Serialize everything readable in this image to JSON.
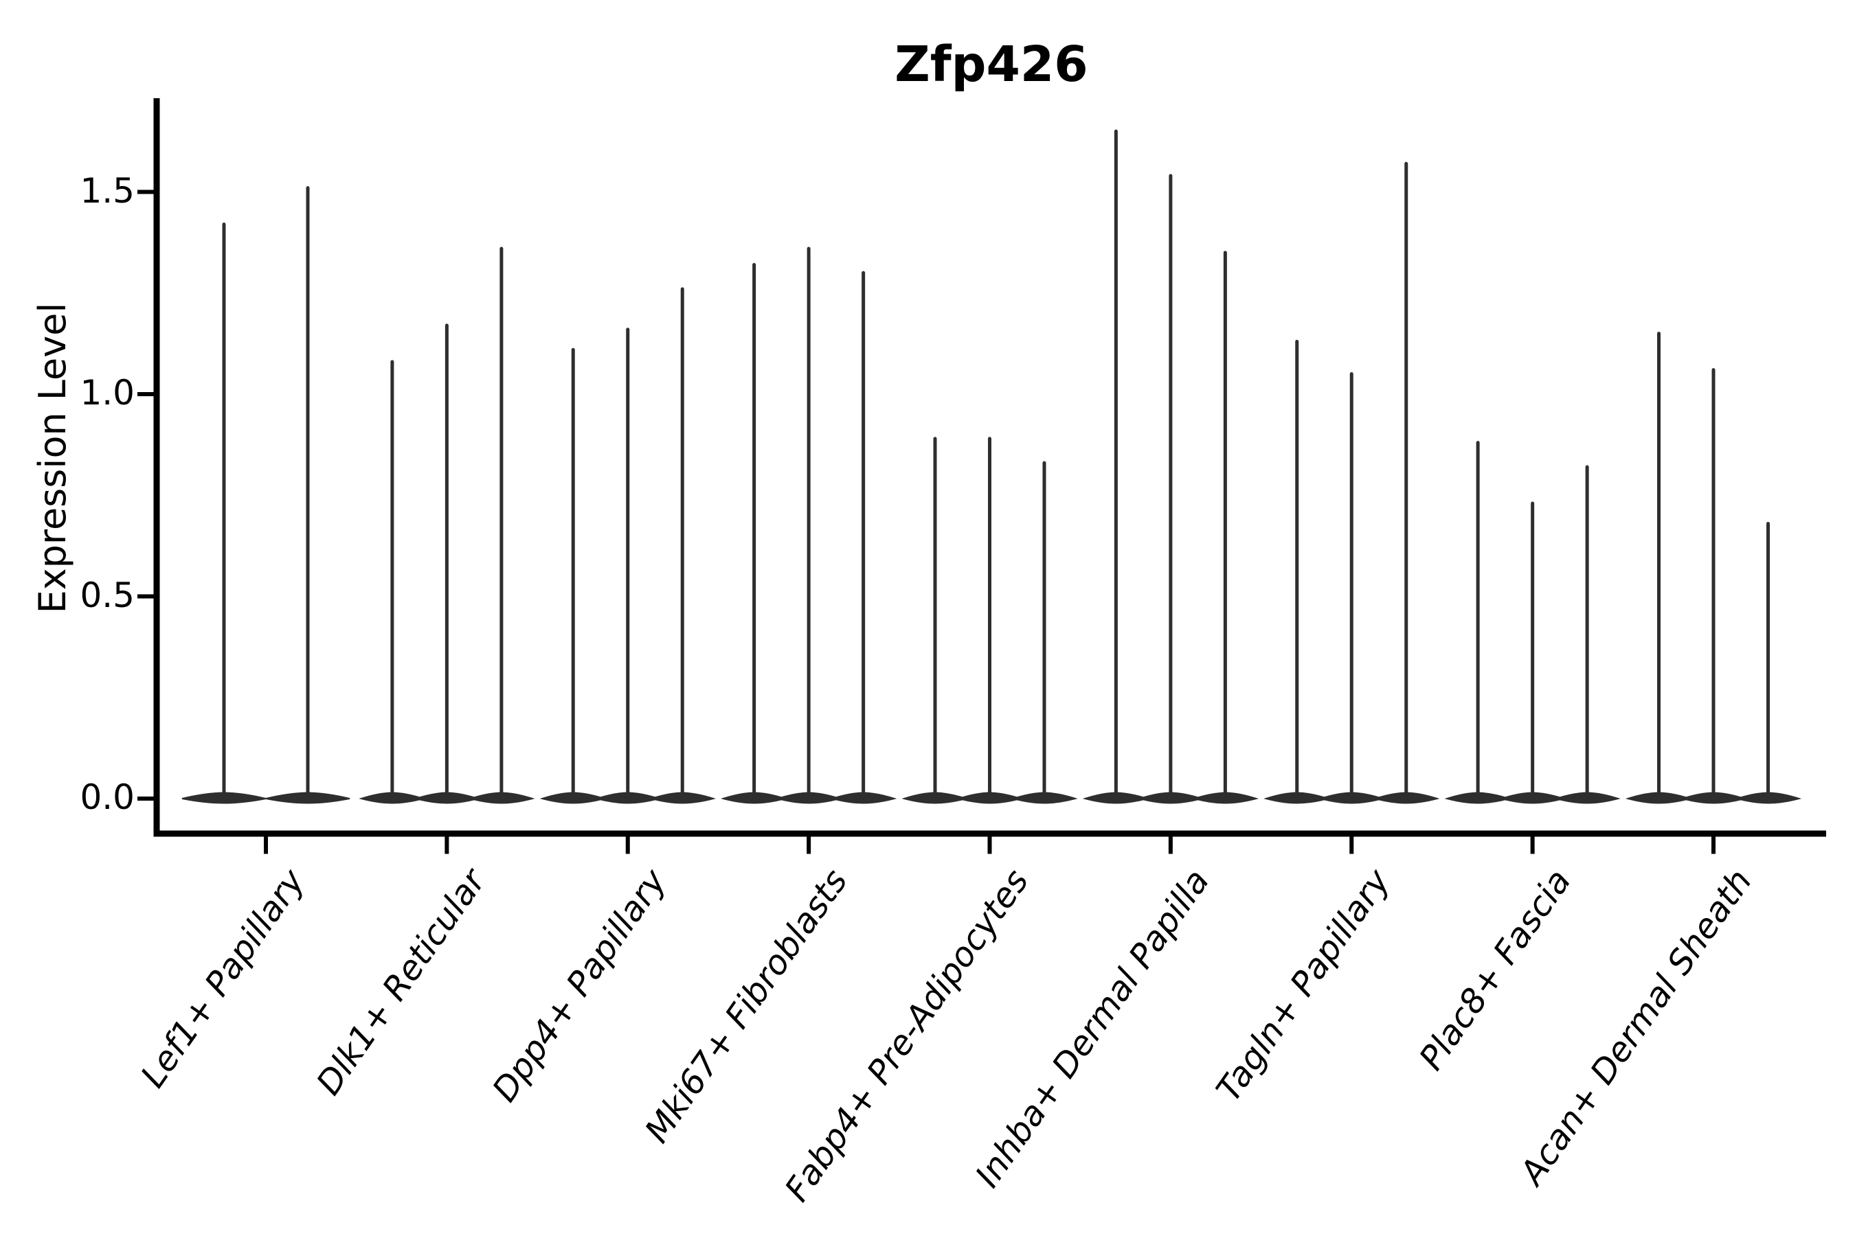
{
  "chart_data": {
    "type": "violin",
    "title": "Zfp426",
    "ylabel": "Expression Level",
    "xlabel": "",
    "ylim": [
      -0.08,
      1.72
    ],
    "yticks": [
      0.0,
      0.5,
      1.0,
      1.5
    ],
    "ytick_labels": [
      "0.0",
      "0.5",
      "1.0",
      "1.5"
    ],
    "grid": "off",
    "legend": "none",
    "categories": [
      "Lef1+ Papillary",
      "Dlk1+ Reticular",
      "Dpp4+ Papillary",
      "Mki67+ Fibroblasts",
      "Fabp4+ Pre-Adipocytes",
      "Inhba+ Dermal Papilla",
      "Tagln+ Papillary",
      "Plac8+ Fascia",
      "Acan+ Dermal Sheath"
    ],
    "groups": [
      {
        "category": "Lef1+ Papillary",
        "violin_peaks": [
          1.42,
          1.51
        ]
      },
      {
        "category": "Dlk1+ Reticular",
        "violin_peaks": [
          1.08,
          1.17,
          1.36
        ]
      },
      {
        "category": "Dpp4+ Papillary",
        "violin_peaks": [
          1.11,
          1.16,
          1.26
        ]
      },
      {
        "category": "Mki67+ Fibroblasts",
        "violin_peaks": [
          1.32,
          1.36,
          1.3
        ]
      },
      {
        "category": "Fabp4+ Pre-Adipocytes",
        "violin_peaks": [
          0.89,
          0.89,
          0.83
        ]
      },
      {
        "category": "Inhba+ Dermal Papilla",
        "violin_peaks": [
          1.65,
          1.54,
          1.35
        ]
      },
      {
        "category": "Tagln+ Papillary",
        "violin_peaks": [
          1.13,
          1.05,
          1.57
        ]
      },
      {
        "category": "Plac8+ Fascia",
        "violin_peaks": [
          0.88,
          0.73,
          0.82
        ]
      },
      {
        "category": "Acan+ Dermal Sheath",
        "violin_peaks": [
          1.15,
          1.06,
          0.68
        ]
      }
    ],
    "distribution_note": "Each violin has nearly all density at expression 0 (wide flat base) with a thin spike rising to its peak value.",
    "colors": {
      "violin": "#2e2e2e",
      "axis": "#000000",
      "text": "#000000",
      "background": "#ffffff"
    }
  }
}
